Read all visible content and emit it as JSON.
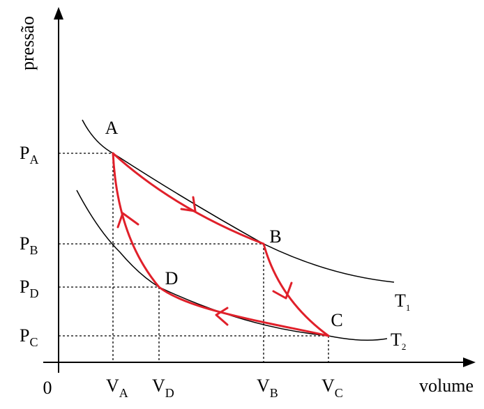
{
  "axes": {
    "y_label": "pressão",
    "x_label": "volume",
    "origin": "0"
  },
  "pressure_ticks": [
    {
      "symbol": "P",
      "subscript": "A"
    },
    {
      "symbol": "P",
      "subscript": "B"
    },
    {
      "symbol": "P",
      "subscript": "D"
    },
    {
      "symbol": "P",
      "subscript": "C"
    }
  ],
  "volume_ticks": [
    {
      "symbol": "V",
      "subscript": "A"
    },
    {
      "symbol": "V",
      "subscript": "D"
    },
    {
      "symbol": "V",
      "subscript": "B"
    },
    {
      "symbol": "V",
      "subscript": "C"
    }
  ],
  "points": [
    "A",
    "B",
    "C",
    "D"
  ],
  "isotherms": [
    {
      "symbol": "T",
      "subscript": "1"
    },
    {
      "symbol": "T",
      "subscript": "2"
    }
  ]
}
